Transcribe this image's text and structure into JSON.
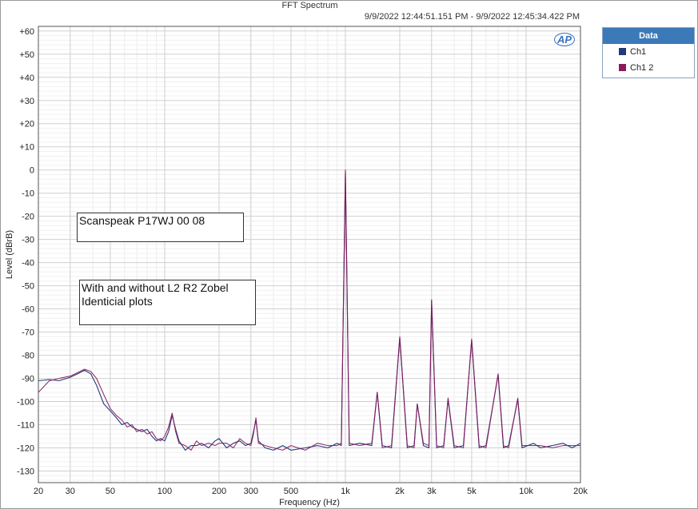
{
  "chart_data": {
    "type": "line",
    "title": "FFT Spectrum",
    "subtitle": "9/9/2022 12:44:51.151 PM - 9/9/2022 12:45:34.422 PM",
    "xlabel": "Frequency (Hz)",
    "ylabel": "Level (dBrB)",
    "x_scale": "log",
    "xlim": [
      20,
      20000
    ],
    "ylim": [
      -135,
      62
    ],
    "x_ticks": [
      {
        "value": 20,
        "label": "20"
      },
      {
        "value": 30,
        "label": "30"
      },
      {
        "value": 50,
        "label": "50"
      },
      {
        "value": 100,
        "label": "100"
      },
      {
        "value": 200,
        "label": "200"
      },
      {
        "value": 300,
        "label": "300"
      },
      {
        "value": 500,
        "label": "500"
      },
      {
        "value": 1000,
        "label": "1k"
      },
      {
        "value": 2000,
        "label": "2k"
      },
      {
        "value": 3000,
        "label": "3k"
      },
      {
        "value": 5000,
        "label": "5k"
      },
      {
        "value": 10000,
        "label": "10k"
      },
      {
        "value": 20000,
        "label": "20k"
      }
    ],
    "y_ticks": [
      {
        "value": 60,
        "label": "+60"
      },
      {
        "value": 50,
        "label": "+50"
      },
      {
        "value": 40,
        "label": "+40"
      },
      {
        "value": 30,
        "label": "+30"
      },
      {
        "value": 20,
        "label": "+20"
      },
      {
        "value": 10,
        "label": "+10"
      },
      {
        "value": 0,
        "label": "0"
      },
      {
        "value": -10,
        "label": "-10"
      },
      {
        "value": -20,
        "label": "-20"
      },
      {
        "value": -30,
        "label": "-30"
      },
      {
        "value": -40,
        "label": "-40"
      },
      {
        "value": -50,
        "label": "-50"
      },
      {
        "value": -60,
        "label": "-60"
      },
      {
        "value": -70,
        "label": "-70"
      },
      {
        "value": -80,
        "label": "-80"
      },
      {
        "value": -90,
        "label": "-90"
      },
      {
        "value": -100,
        "label": "-100"
      },
      {
        "value": -110,
        "label": "-110"
      },
      {
        "value": -120,
        "label": "-120"
      },
      {
        "value": -130,
        "label": "-130"
      }
    ],
    "grid": true,
    "legend": {
      "title": "Data",
      "placement": "right"
    },
    "series": [
      {
        "name": "Ch1",
        "color": "#1f3a7a",
        "points": [
          [
            20,
            -91
          ],
          [
            23,
            -90.5
          ],
          [
            26,
            -91
          ],
          [
            30,
            -89.5
          ],
          [
            33,
            -88
          ],
          [
            36,
            -86.5
          ],
          [
            39,
            -88
          ],
          [
            42,
            -93
          ],
          [
            46,
            -101
          ],
          [
            50,
            -104
          ],
          [
            54,
            -107
          ],
          [
            58,
            -110
          ],
          [
            62,
            -109
          ],
          [
            66,
            -111
          ],
          [
            70,
            -112
          ],
          [
            75,
            -113
          ],
          [
            80,
            -112
          ],
          [
            85,
            -115
          ],
          [
            90,
            -117
          ],
          [
            95,
            -116
          ],
          [
            100,
            -117
          ],
          [
            105,
            -113
          ],
          [
            110,
            -106
          ],
          [
            115,
            -112
          ],
          [
            120,
            -117
          ],
          [
            130,
            -121
          ],
          [
            140,
            -119
          ],
          [
            150,
            -119
          ],
          [
            160,
            -118
          ],
          [
            175,
            -120
          ],
          [
            190,
            -117
          ],
          [
            200,
            -116
          ],
          [
            220,
            -120
          ],
          [
            240,
            -118
          ],
          [
            260,
            -117
          ],
          [
            280,
            -119
          ],
          [
            300,
            -118
          ],
          [
            310,
            -113
          ],
          [
            320,
            -108
          ],
          [
            330,
            -117
          ],
          [
            360,
            -120
          ],
          [
            400,
            -121
          ],
          [
            450,
            -119
          ],
          [
            500,
            -121
          ],
          [
            600,
            -120
          ],
          [
            700,
            -119
          ],
          [
            800,
            -120
          ],
          [
            900,
            -118
          ],
          [
            950,
            -119
          ],
          [
            1000,
            -1
          ],
          [
            1050,
            -119
          ],
          [
            1200,
            -118
          ],
          [
            1400,
            -119
          ],
          [
            1500,
            -96
          ],
          [
            1600,
            -119
          ],
          [
            1800,
            -120
          ],
          [
            2000,
            -72.5
          ],
          [
            2200,
            -120
          ],
          [
            2400,
            -119
          ],
          [
            2500,
            -101
          ],
          [
            2700,
            -119
          ],
          [
            2900,
            -120
          ],
          [
            3000,
            -56.5
          ],
          [
            3200,
            -120
          ],
          [
            3500,
            -119
          ],
          [
            3700,
            -99
          ],
          [
            4000,
            -120
          ],
          [
            4500,
            -119
          ],
          [
            5000,
            -73.5
          ],
          [
            5500,
            -120
          ],
          [
            6000,
            -119
          ],
          [
            7000,
            -88.5
          ],
          [
            7500,
            -120
          ],
          [
            8000,
            -119
          ],
          [
            9000,
            -99
          ],
          [
            9500,
            -120
          ],
          [
            11000,
            -118
          ],
          [
            12000,
            -120
          ],
          [
            14000,
            -119
          ],
          [
            16000,
            -118
          ],
          [
            18000,
            -120
          ],
          [
            20000,
            -118
          ]
        ]
      },
      {
        "name": "Ch1 2",
        "color": "#8b1a5c",
        "points": [
          [
            20,
            -96
          ],
          [
            23,
            -91
          ],
          [
            26,
            -90
          ],
          [
            30,
            -89
          ],
          [
            33,
            -87.5
          ],
          [
            36,
            -86
          ],
          [
            39,
            -87
          ],
          [
            42,
            -90
          ],
          [
            46,
            -97
          ],
          [
            50,
            -103
          ],
          [
            54,
            -106
          ],
          [
            58,
            -108
          ],
          [
            62,
            -111
          ],
          [
            66,
            -110
          ],
          [
            70,
            -113
          ],
          [
            75,
            -112
          ],
          [
            80,
            -114
          ],
          [
            85,
            -113
          ],
          [
            90,
            -116
          ],
          [
            95,
            -117
          ],
          [
            100,
            -115
          ],
          [
            105,
            -111
          ],
          [
            110,
            -105
          ],
          [
            115,
            -113
          ],
          [
            120,
            -118
          ],
          [
            130,
            -119
          ],
          [
            140,
            -121
          ],
          [
            150,
            -117
          ],
          [
            160,
            -119
          ],
          [
            175,
            -118
          ],
          [
            190,
            -119
          ],
          [
            200,
            -118
          ],
          [
            220,
            -118
          ],
          [
            240,
            -120
          ],
          [
            260,
            -116
          ],
          [
            280,
            -118
          ],
          [
            300,
            -119
          ],
          [
            310,
            -114
          ],
          [
            320,
            -107
          ],
          [
            330,
            -118
          ],
          [
            360,
            -119
          ],
          [
            400,
            -120
          ],
          [
            450,
            -121
          ],
          [
            500,
            -119
          ],
          [
            600,
            -121
          ],
          [
            700,
            -118
          ],
          [
            800,
            -119
          ],
          [
            900,
            -119
          ],
          [
            950,
            -118
          ],
          [
            1000,
            0
          ],
          [
            1050,
            -118
          ],
          [
            1200,
            -119
          ],
          [
            1400,
            -118
          ],
          [
            1500,
            -96
          ],
          [
            1600,
            -120
          ],
          [
            1800,
            -119
          ],
          [
            2000,
            -72
          ],
          [
            2200,
            -119
          ],
          [
            2400,
            -120
          ],
          [
            2500,
            -101
          ],
          [
            2700,
            -118
          ],
          [
            2900,
            -119
          ],
          [
            3000,
            -56
          ],
          [
            3200,
            -119
          ],
          [
            3500,
            -120
          ],
          [
            3700,
            -98.5
          ],
          [
            4000,
            -119
          ],
          [
            4500,
            -120
          ],
          [
            5000,
            -73
          ],
          [
            5500,
            -119
          ],
          [
            6000,
            -120
          ],
          [
            7000,
            -88
          ],
          [
            7500,
            -119
          ],
          [
            8000,
            -120
          ],
          [
            9000,
            -98.5
          ],
          [
            9500,
            -119
          ],
          [
            11000,
            -119
          ],
          [
            12000,
            -119
          ],
          [
            14000,
            -120
          ],
          [
            16000,
            -119
          ],
          [
            18000,
            -119
          ],
          [
            20000,
            -119
          ]
        ]
      }
    ],
    "annotations": [
      {
        "id": "device",
        "text": "Scanspeak P17WJ 00 08"
      },
      {
        "id": "note",
        "text": "With and without L2 R2 Zobel\nIdenticial plots"
      }
    ]
  },
  "logo_text": "AP"
}
